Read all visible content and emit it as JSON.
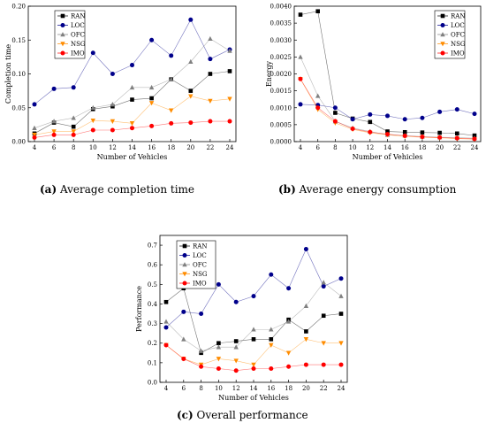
{
  "chart_data": [
    {
      "type": "line",
      "caption_letter": "(a)",
      "caption_text": "Average completion time",
      "xlabel": "Number of Vehicles",
      "ylabel": "Completion time",
      "x": [
        4,
        6,
        8,
        10,
        12,
        14,
        16,
        18,
        20,
        22,
        24
      ],
      "x_ticks": [
        "4",
        "6",
        "8",
        "10",
        "12",
        "14",
        "16",
        "18",
        "20",
        "22",
        "24"
      ],
      "ylim": [
        0,
        0.2
      ],
      "y_ticks": [
        0,
        0.05,
        0.1,
        0.15,
        0.2
      ],
      "y_tick_labels": [
        "0.00",
        "0.05",
        "0.10",
        "0.15",
        "0.20"
      ],
      "legend_position": "top-left",
      "series": [
        {
          "name": "RAN",
          "color": "#000000",
          "marker": "square",
          "values": [
            0.012,
            0.028,
            0.022,
            0.048,
            0.052,
            0.062,
            0.064,
            0.092,
            0.075,
            0.1,
            0.104
          ]
        },
        {
          "name": "LOC",
          "color": "#00008b",
          "marker": "circle",
          "values": [
            0.055,
            0.078,
            0.08,
            0.131,
            0.1,
            0.113,
            0.15,
            0.127,
            0.18,
            0.122,
            0.136
          ]
        },
        {
          "name": "OFC",
          "color": "#808080",
          "marker": "triangle",
          "values": [
            0.02,
            0.03,
            0.035,
            0.05,
            0.055,
            0.08,
            0.08,
            0.092,
            0.118,
            0.152,
            0.134
          ]
        },
        {
          "name": "NSG",
          "color": "#ff8c00",
          "marker": "triangle-down",
          "values": [
            0.01,
            0.015,
            0.015,
            0.031,
            0.03,
            0.027,
            0.057,
            0.046,
            0.067,
            0.06,
            0.063
          ]
        },
        {
          "name": "IMO",
          "color": "#ff0000",
          "marker": "circle",
          "values": [
            0.006,
            0.01,
            0.01,
            0.017,
            0.017,
            0.02,
            0.023,
            0.027,
            0.028,
            0.03,
            0.03
          ]
        }
      ]
    },
    {
      "type": "line",
      "caption_letter": "(b)",
      "caption_text": "Average energy consumption",
      "xlabel": "Number of Vehicles",
      "ylabel": "Energy",
      "x": [
        4,
        6,
        8,
        10,
        12,
        14,
        16,
        18,
        20,
        22,
        24
      ],
      "x_ticks": [
        "4",
        "6",
        "8",
        "10",
        "12",
        "14",
        "16",
        "18",
        "20",
        "22",
        "24"
      ],
      "ylim": [
        0,
        0.004
      ],
      "y_ticks": [
        0,
        0.0005,
        0.001,
        0.0015,
        0.002,
        0.0025,
        0.003,
        0.0035,
        0.004
      ],
      "y_tick_labels": [
        "0.0000",
        "0.0005",
        "0.0010",
        "0.0015",
        "0.0020",
        "0.0025",
        "0.0030",
        "0.0035",
        "0.0040"
      ],
      "legend_position": "top-right",
      "series": [
        {
          "name": "RAN",
          "color": "#000000",
          "marker": "square",
          "values": [
            0.00375,
            0.00385,
            0.00085,
            0.00068,
            0.00058,
            0.0003,
            0.00028,
            0.00027,
            0.00026,
            0.00024,
            0.00018
          ]
        },
        {
          "name": "LOC",
          "color": "#00008b",
          "marker": "circle",
          "values": [
            0.0011,
            0.00108,
            0.001,
            0.00066,
            0.0008,
            0.00076,
            0.00066,
            0.0007,
            0.00088,
            0.00095,
            0.00082
          ]
        },
        {
          "name": "OFC",
          "color": "#808080",
          "marker": "triangle",
          "values": [
            0.0025,
            0.00135,
            0.0006,
            0.0004,
            0.0003,
            0.0002,
            0.00018,
            0.00015,
            0.00013,
            0.00012,
            0.0001
          ]
        },
        {
          "name": "NSG",
          "color": "#ff8c00",
          "marker": "triangle-down",
          "values": [
            0.00185,
            0.00095,
            0.00055,
            0.00036,
            0.00026,
            0.0002,
            0.00015,
            0.00013,
            0.00011,
            9e-05,
            7e-05
          ]
        },
        {
          "name": "IMO",
          "color": "#ff0000",
          "marker": "circle",
          "values": [
            0.00185,
            0.001,
            0.0006,
            0.00038,
            0.00028,
            0.00022,
            0.00017,
            0.00014,
            0.00012,
            0.0001,
            8e-05
          ]
        }
      ]
    },
    {
      "type": "line",
      "caption_letter": "(c)",
      "caption_text": "Overall performance",
      "xlabel": "Number of Vehicles",
      "ylabel": "Performance",
      "x": [
        4,
        6,
        8,
        10,
        12,
        14,
        16,
        18,
        20,
        22,
        24
      ],
      "x_ticks": [
        "4",
        "6",
        "8",
        "10",
        "12",
        "14",
        "16",
        "18",
        "20",
        "22",
        "24"
      ],
      "ylim": [
        0,
        0.75
      ],
      "y_ticks": [
        0,
        0.1,
        0.2,
        0.3,
        0.4,
        0.5,
        0.6,
        0.7
      ],
      "y_tick_labels": [
        "0.0",
        "0.1",
        "0.2",
        "0.3",
        "0.4",
        "0.5",
        "0.6",
        "0.7"
      ],
      "legend_position": "top-left",
      "series": [
        {
          "name": "RAN",
          "color": "#000000",
          "marker": "square",
          "values": [
            0.41,
            0.48,
            0.15,
            0.2,
            0.21,
            0.22,
            0.22,
            0.32,
            0.26,
            0.34,
            0.35
          ]
        },
        {
          "name": "LOC",
          "color": "#00008b",
          "marker": "circle",
          "values": [
            0.28,
            0.36,
            0.35,
            0.5,
            0.41,
            0.44,
            0.55,
            0.48,
            0.68,
            0.49,
            0.53
          ]
        },
        {
          "name": "OFC",
          "color": "#808080",
          "marker": "triangle",
          "values": [
            0.31,
            0.22,
            0.16,
            0.18,
            0.18,
            0.27,
            0.27,
            0.31,
            0.39,
            0.51,
            0.44
          ]
        },
        {
          "name": "NSG",
          "color": "#ff8c00",
          "marker": "triangle-down",
          "values": [
            0.19,
            0.12,
            0.09,
            0.12,
            0.11,
            0.09,
            0.19,
            0.15,
            0.22,
            0.2,
            0.2
          ]
        },
        {
          "name": "IMO",
          "color": "#ff0000",
          "marker": "circle",
          "values": [
            0.19,
            0.12,
            0.08,
            0.07,
            0.06,
            0.07,
            0.07,
            0.08,
            0.09,
            0.09,
            0.09
          ]
        }
      ]
    }
  ]
}
